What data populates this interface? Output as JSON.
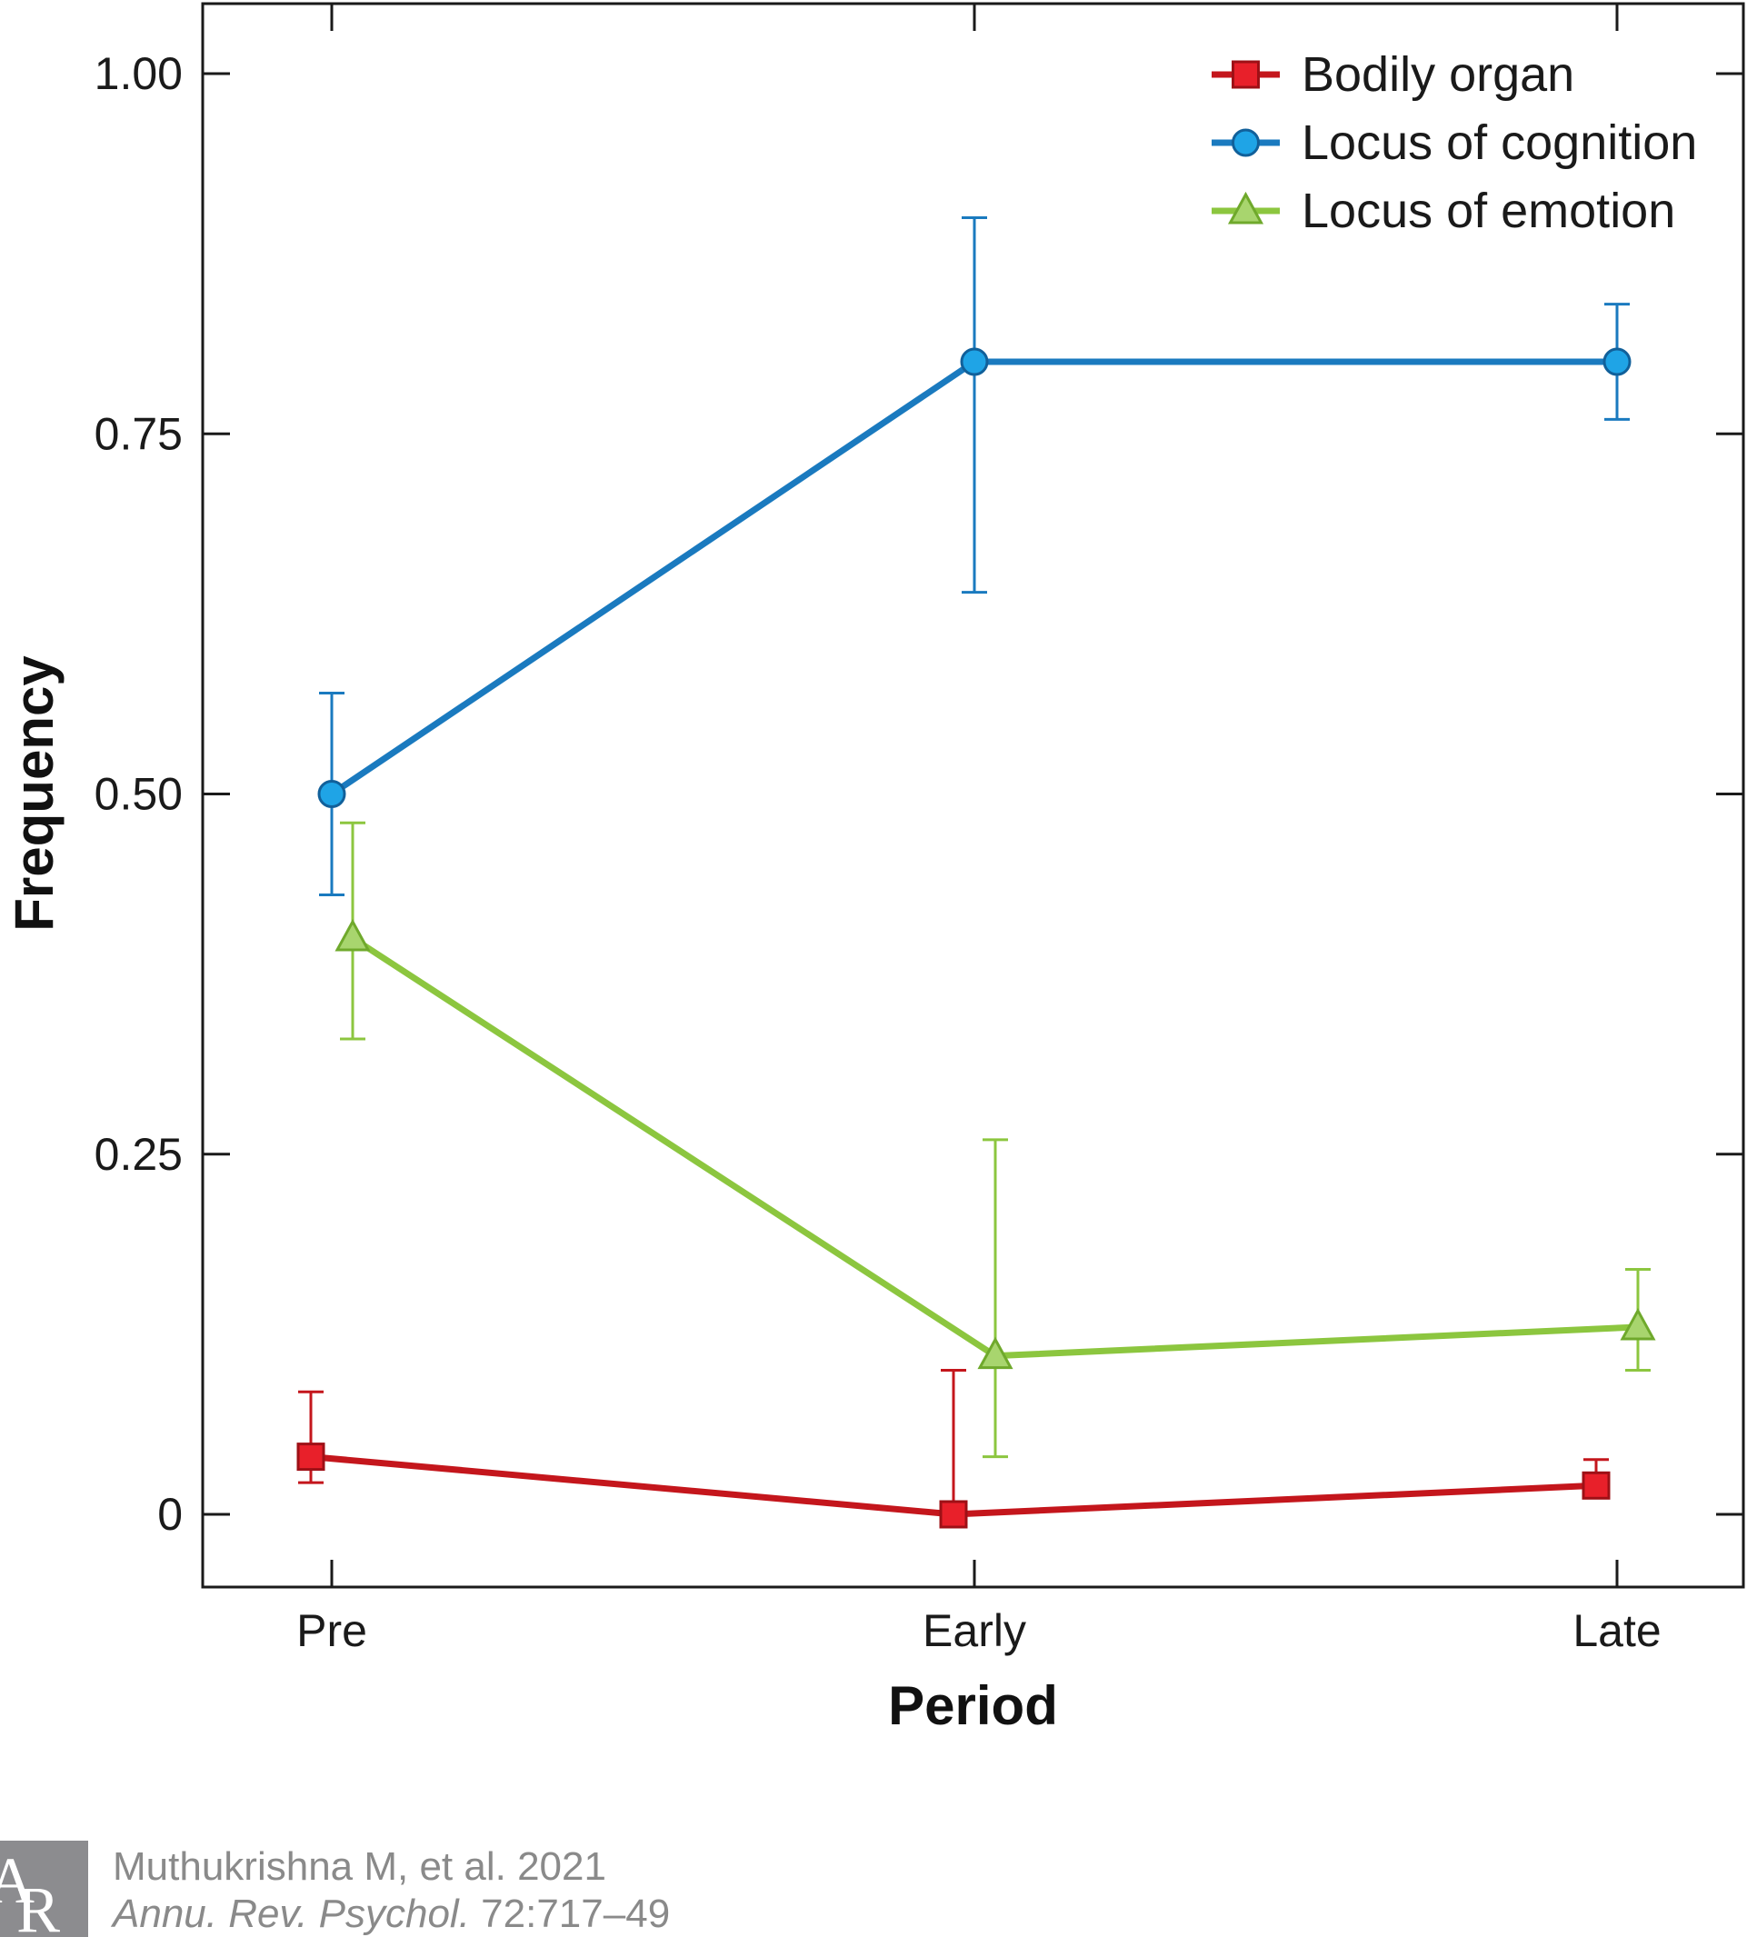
{
  "chart_data": {
    "type": "line",
    "xlabel": "Period",
    "ylabel": "Frequency",
    "categories": [
      "Pre",
      "Early",
      "Late"
    ],
    "yticks": [
      {
        "value": 0,
        "label": "0"
      },
      {
        "value": 0.25,
        "label": "0.25"
      },
      {
        "value": 0.5,
        "label": "0.50"
      },
      {
        "value": 0.75,
        "label": "0.75"
      },
      {
        "value": 1.0,
        "label": "1.00"
      }
    ],
    "ylim": [
      -0.05,
      1.05
    ],
    "grid": false,
    "legend_position": "top-right",
    "series": [
      {
        "name": "Bodily organ",
        "color": "#c4161c",
        "marker": "square",
        "values": [
          0.04,
          0.0,
          0.02
        ],
        "error_upper": [
          0.085,
          0.1,
          0.038
        ],
        "error_lower": [
          0.022,
          null,
          null
        ]
      },
      {
        "name": "Locus of cognition",
        "color": "#1a7abf",
        "marker": "circle",
        "values": [
          0.5,
          0.8,
          0.8
        ],
        "error_upper": [
          0.57,
          0.9,
          0.84
        ],
        "error_lower": [
          0.43,
          0.64,
          0.76
        ]
      },
      {
        "name": "Locus of emotion",
        "color": "#8cc63f",
        "marker": "triangle",
        "values": [
          0.4,
          0.11,
          0.13
        ],
        "error_upper": [
          0.48,
          0.26,
          0.17
        ],
        "error_lower": [
          0.33,
          0.04,
          0.1
        ]
      }
    ]
  },
  "credit": {
    "logo_letters": "AR",
    "authors": "Muthukrishna M, et al. 2021",
    "journal": "Annu. Rev. Psychol.",
    "citation": "72:717–49"
  }
}
